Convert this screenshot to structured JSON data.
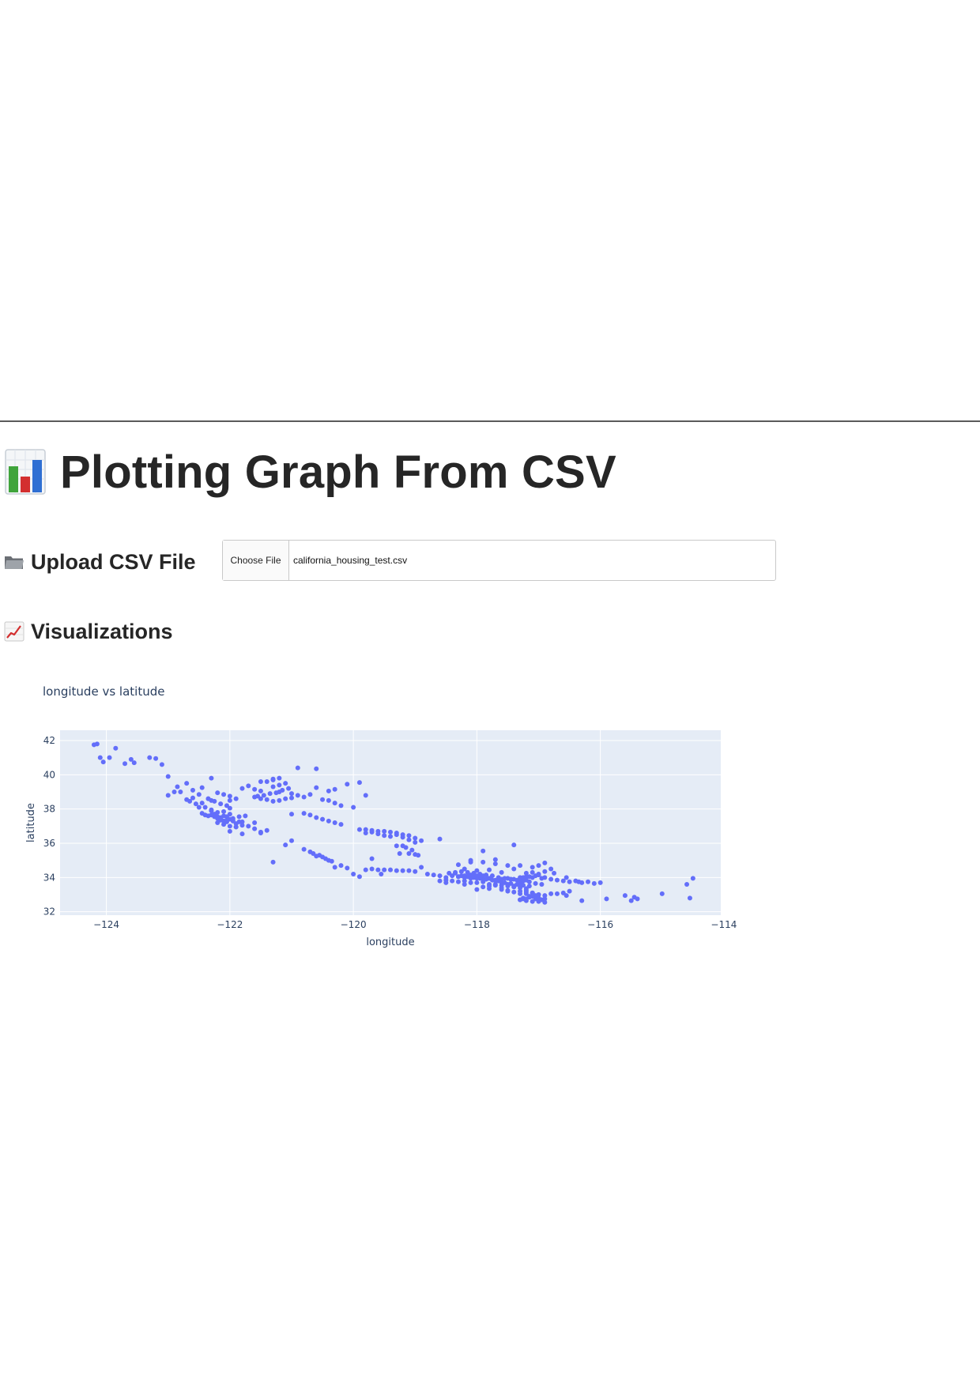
{
  "header": {
    "title": "Plotting Graph From CSV",
    "title_icon": "bar-chart-icon"
  },
  "upload": {
    "heading": "Upload CSV File",
    "heading_icon": "folder-icon",
    "button_label": "Choose File",
    "file_name": "california_housing_test.csv"
  },
  "visualizations": {
    "heading": "Visualizations",
    "heading_icon": "line-chart-icon"
  },
  "colors": {
    "marker": "#636efa",
    "plot_bg": "#e5ecf6",
    "text": "#2a3f5f"
  },
  "chart_data": {
    "type": "scatter",
    "title": "longitude vs latitude",
    "xlabel": "longitude",
    "ylabel": "latitude",
    "xlim": [
      -124.75,
      -114.05
    ],
    "ylim": [
      31.8,
      42.6
    ],
    "xticks": [
      -124,
      -122,
      -120,
      -118,
      -116,
      -114
    ],
    "xtick_labels": [
      "−124",
      "−122",
      "−120",
      "−118",
      "−116",
      "−114"
    ],
    "yticks": [
      32,
      34,
      36,
      38,
      40,
      42
    ],
    "ytick_labels": [
      "32",
      "34",
      "36",
      "38",
      "40",
      "42"
    ],
    "grid": true,
    "series": [
      {
        "x": [
          -124.15,
          -124.2,
          -124.1,
          -124.05,
          -123.95,
          -123.85,
          -123.6,
          -123.7,
          -123.55,
          -123.3,
          -123.2,
          -123.1,
          -123.0,
          -122.85,
          -122.7,
          -122.6,
          -122.45,
          -122.35,
          -122.25,
          -122.15,
          -122.05,
          -122.0,
          -122.4,
          -122.3,
          -122.2,
          -122.1,
          -122.45,
          -122.35,
          -122.25,
          -122.15,
          -122.05,
          -121.95,
          -122.3,
          -122.2,
          -122.1,
          -122.0,
          -121.9,
          -122.4,
          -122.3,
          -122.2,
          -122.1,
          -122.0,
          -122.25,
          -122.15,
          -122.05,
          -121.95,
          -121.85,
          -122.2,
          -122.1,
          -122.0,
          -121.9,
          -122.15,
          -122.05,
          -121.95,
          -121.85,
          -121.75,
          -122.55,
          -122.65,
          -122.7,
          -122.5,
          -122.8,
          -122.9,
          -123.0,
          -122.2,
          -122.1,
          -122.0,
          -121.9,
          -122.5,
          -122.6,
          -122.45,
          -122.3,
          -122.35,
          -122.0,
          -121.6,
          -121.5,
          -121.4,
          -121.3,
          -121.2,
          -121.1,
          -121.0,
          -121.55,
          -121.45,
          -121.35,
          -121.25,
          -121.15,
          -121.05,
          -121.3,
          -121.2,
          -121.1,
          -121.4,
          -121.3,
          -121.2,
          -121.6,
          -121.5,
          -121.8,
          -121.7,
          -121.5,
          -121.3,
          -121.2,
          -121.0,
          -120.9,
          -120.8,
          -120.7,
          -120.5,
          -120.4,
          -120.3,
          -120.2,
          -120.0,
          -120.6,
          -120.4,
          -120.3,
          -120.1,
          -119.9,
          -121.0,
          -120.8,
          -120.7,
          -120.6,
          -120.5,
          -120.4,
          -120.3,
          -120.2,
          -119.9,
          -119.8,
          -119.7,
          -119.6,
          -119.5,
          -119.4,
          -119.3,
          -119.2,
          -119.1,
          -119.0,
          -118.9,
          -119.8,
          -119.7,
          -119.6,
          -119.5,
          -119.4,
          -119.3,
          -119.2,
          -119.1,
          -119.0,
          -119.25,
          -119.1,
          -119.0,
          -119.15,
          -118.95,
          -119.05,
          -120.7,
          -120.65,
          -120.6,
          -120.55,
          -120.5,
          -120.45,
          -120.4,
          -120.35,
          -120.2,
          -120.3,
          -121.1,
          -120.8,
          -121.5,
          -121.8,
          -122.0,
          -121.8,
          -121.9,
          -121.7,
          -121.6,
          -121.4,
          -121.5,
          -119.6,
          -119.5,
          -119.4,
          -119.3,
          -119.2,
          -119.1,
          -119.0,
          -119.8,
          -119.7,
          -119.55,
          -120.0,
          -119.9,
          -118.8,
          -118.7,
          -118.6,
          -118.5,
          -118.4,
          -118.3,
          -118.2,
          -118.1,
          -118.0,
          -117.9,
          -117.8,
          -117.7,
          -117.6,
          -117.5,
          -117.4,
          -117.3,
          -117.2,
          -117.1,
          -118.6,
          -118.5,
          -118.4,
          -118.3,
          -118.2,
          -118.1,
          -118.0,
          -117.9,
          -117.8,
          -117.7,
          -117.6,
          -117.5,
          -117.4,
          -117.3,
          -117.2,
          -117.1,
          -117.0,
          -118.35,
          -118.25,
          -118.15,
          -118.05,
          -117.95,
          -117.85,
          -117.75,
          -117.65,
          -117.55,
          -117.45,
          -117.35,
          -117.25,
          -117.15,
          -118.3,
          -118.2,
          -118.1,
          -118.0,
          -117.9,
          -117.8,
          -117.7,
          -117.6,
          -117.5,
          -117.4,
          -117.3,
          -117.2,
          -118.45,
          -118.35,
          -118.25,
          -118.15,
          -118.05,
          -117.95,
          -117.85,
          -117.75,
          -117.65,
          -117.55,
          -117.45,
          -117.35,
          -117.25,
          -117.15,
          -117.05,
          -116.95,
          -118.2,
          -118.0,
          -117.8,
          -117.6,
          -117.4,
          -117.2,
          -117.0,
          -116.9,
          -116.8,
          -116.7,
          -116.6,
          -116.5,
          -116.4,
          -116.3,
          -116.2,
          -116.1,
          -116.0,
          -117.1,
          -117.3,
          -117.5,
          -117.7,
          -117.9,
          -118.1,
          -118.3,
          -117.0,
          -116.9,
          -116.8,
          -117.3,
          -117.2,
          -117.1,
          -117.0,
          -116.9,
          -117.25,
          -117.15,
          -117.05,
          -116.95,
          -117.3,
          -117.2,
          -117.1,
          -117.0,
          -116.9,
          -117.25,
          -117.15,
          -117.05,
          -117.2,
          -117.1,
          -117.0,
          -116.9,
          -117.3,
          -117.2,
          -117.1,
          -117.0,
          -116.8,
          -116.7,
          -116.6,
          -116.5,
          -117.6,
          -117.5,
          -117.4,
          -117.3,
          -117.2,
          -117.1,
          -118.0,
          -117.8,
          -117.6,
          -117.4,
          -117.9,
          -117.7,
          -117.5,
          -117.3,
          -118.2,
          -117.85,
          -117.65,
          -117.45,
          -117.25,
          -117.05,
          -117.15,
          -116.95,
          -116.75,
          -116.55,
          -116.35,
          -115.9,
          -115.6,
          -115.5,
          -115.45,
          -115.4,
          -115.0,
          -114.6,
          -114.55,
          -114.5,
          -116.3,
          -116.55,
          -117.0,
          -117.3,
          -117.5,
          -117.8,
          -118.2,
          -118.5,
          -118.9,
          -119.7,
          -120.1,
          -121.3,
          -119.3,
          -119.2,
          -118.6,
          -117.9,
          -117.7,
          -116.9,
          -117.4,
          -121.0,
          -121.6,
          -121.8,
          -122.3,
          -120.9,
          -120.6,
          -119.8,
          -118.1
        ],
        "y": [
          41.8,
          41.75,
          41.0,
          40.75,
          41.0,
          41.55,
          40.9,
          40.65,
          40.7,
          41.0,
          40.95,
          40.6,
          39.9,
          39.3,
          39.5,
          39.1,
          39.25,
          38.6,
          38.45,
          38.3,
          38.2,
          38.05,
          38.1,
          37.9,
          37.8,
          37.85,
          37.75,
          37.6,
          37.7,
          37.5,
          37.55,
          37.35,
          37.95,
          37.45,
          37.3,
          37.4,
          37.15,
          37.65,
          37.65,
          37.55,
          37.6,
          37.7,
          37.55,
          37.45,
          37.35,
          37.3,
          37.25,
          37.2,
          37.1,
          37.0,
          36.95,
          37.35,
          37.25,
          37.45,
          37.55,
          37.6,
          38.3,
          38.45,
          38.55,
          38.1,
          39.0,
          39.0,
          38.8,
          38.95,
          38.85,
          38.75,
          38.6,
          38.85,
          38.65,
          38.35,
          38.5,
          38.6,
          38.5,
          38.7,
          38.6,
          38.55,
          38.45,
          38.5,
          38.6,
          38.65,
          38.75,
          38.8,
          38.9,
          38.95,
          39.1,
          39.2,
          39.3,
          39.4,
          39.5,
          39.6,
          39.7,
          39.8,
          39.15,
          39.05,
          39.2,
          39.35,
          39.6,
          39.75,
          39.0,
          38.9,
          38.8,
          38.7,
          38.85,
          38.55,
          38.5,
          38.35,
          38.2,
          38.1,
          39.25,
          39.05,
          39.15,
          39.45,
          39.55,
          37.7,
          37.75,
          37.65,
          37.5,
          37.4,
          37.3,
          37.2,
          37.1,
          36.8,
          36.8,
          36.75,
          36.7,
          36.7,
          36.65,
          36.6,
          36.5,
          36.45,
          36.3,
          36.15,
          36.6,
          36.65,
          36.55,
          36.45,
          36.4,
          36.5,
          36.35,
          36.2,
          36.05,
          35.4,
          35.4,
          35.35,
          35.75,
          35.3,
          35.6,
          35.5,
          35.4,
          35.25,
          35.3,
          35.2,
          35.1,
          35.0,
          34.95,
          34.7,
          34.6,
          35.9,
          35.65,
          36.6,
          36.55,
          36.7,
          37.05,
          36.95,
          37.0,
          36.85,
          36.75,
          36.65,
          34.45,
          34.45,
          34.45,
          34.4,
          34.4,
          34.4,
          34.35,
          34.45,
          34.5,
          34.2,
          34.2,
          34.05,
          34.2,
          34.15,
          34.1,
          34.0,
          34.1,
          34.05,
          34.0,
          33.95,
          33.95,
          33.9,
          33.95,
          33.85,
          33.9,
          33.95,
          33.9,
          34.0,
          34.05,
          34.0,
          33.8,
          33.85,
          33.8,
          33.75,
          33.8,
          33.7,
          33.7,
          33.75,
          33.6,
          33.6,
          33.55,
          33.5,
          33.45,
          33.8,
          33.85,
          34.3,
          34.15,
          34.25,
          34.1,
          34.05,
          34.0,
          33.95,
          33.9,
          33.85,
          33.8,
          33.7,
          33.65,
          33.6,
          33.55,
          33.5,
          34.05,
          34.1,
          34.15,
          34.1,
          34.1,
          33.95,
          33.8,
          33.7,
          33.55,
          33.45,
          33.4,
          33.35,
          34.25,
          34.3,
          34.35,
          34.3,
          34.25,
          34.2,
          34.15,
          34.1,
          34.0,
          33.95,
          33.9,
          33.85,
          33.8,
          33.75,
          33.65,
          33.6,
          34.5,
          34.4,
          34.45,
          34.3,
          34.5,
          34.25,
          34.2,
          34.0,
          33.9,
          33.85,
          33.8,
          33.75,
          33.8,
          33.7,
          33.75,
          33.65,
          33.7,
          34.6,
          34.7,
          34.7,
          34.8,
          34.9,
          35.0,
          34.75,
          34.7,
          34.85,
          34.5,
          33.5,
          33.25,
          33.1,
          33.0,
          32.95,
          32.8,
          32.85,
          32.75,
          32.7,
          32.7,
          32.65,
          32.6,
          32.6,
          32.55,
          32.75,
          32.9,
          32.95,
          33.05,
          33.1,
          32.8,
          32.75,
          32.7,
          32.75,
          32.9,
          33.0,
          33.05,
          33.05,
          33.1,
          33.2,
          33.3,
          33.25,
          33.15,
          33.2,
          33.15,
          33.1,
          33.3,
          33.35,
          33.4,
          33.5,
          33.45,
          33.55,
          33.6,
          33.65,
          34.05,
          33.9,
          33.85,
          33.9,
          34.0,
          34.1,
          34.05,
          33.95,
          34.25,
          34.0,
          33.75,
          32.75,
          32.95,
          32.65,
          32.85,
          32.75,
          33.05,
          33.6,
          32.8,
          33.95,
          32.65,
          32.95,
          32.8,
          33.05,
          33.2,
          33.5,
          33.6,
          33.7,
          34.6,
          35.1,
          34.55,
          34.9,
          35.85,
          35.85,
          36.25,
          35.55,
          35.05,
          34.35,
          35.9,
          36.15,
          37.2,
          37.25,
          39.8,
          40.4,
          40.35,
          38.8,
          34.9
        ],
        "color": "#636efa"
      }
    ]
  }
}
